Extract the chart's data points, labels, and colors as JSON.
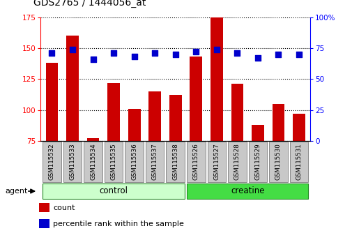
{
  "title": "GDS2765 / 1444056_at",
  "samples": [
    "GSM115532",
    "GSM115533",
    "GSM115534",
    "GSM115535",
    "GSM115536",
    "GSM115537",
    "GSM115538",
    "GSM115526",
    "GSM115527",
    "GSM115528",
    "GSM115529",
    "GSM115530",
    "GSM115531"
  ],
  "counts": [
    138,
    160,
    77,
    122,
    101,
    115,
    112,
    143,
    175,
    121,
    88,
    105,
    97
  ],
  "percentiles": [
    71,
    74,
    66,
    71,
    68,
    71,
    70,
    72,
    74,
    71,
    67,
    70,
    70
  ],
  "bar_color": "#cc0000",
  "dot_color": "#0000cc",
  "ylim_left": [
    75,
    175
  ],
  "ylim_right": [
    0,
    100
  ],
  "yticks_left": [
    75,
    100,
    125,
    150,
    175
  ],
  "yticks_right": [
    0,
    25,
    50,
    75,
    100
  ],
  "legend_count": "count",
  "legend_percentile": "percentile rank within the sample",
  "bar_width": 0.6,
  "dot_size": 30,
  "control_color_light": "#ccffcc",
  "creatine_color": "#44dd44",
  "group_border_color": "#228822",
  "label_box_color": "#c8c8c8",
  "label_box_edge": "#888888"
}
